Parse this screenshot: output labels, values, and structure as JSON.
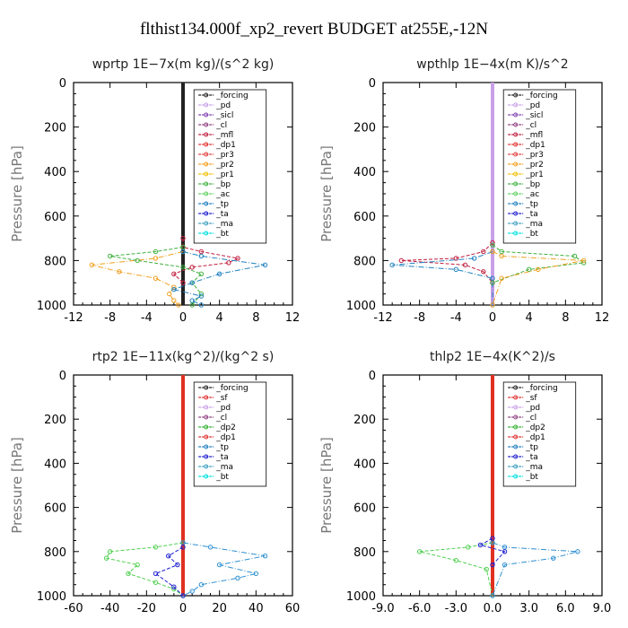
{
  "figure": {
    "title": "flthist134.000f_xp2_revert  BUDGET at255E,-12N"
  },
  "colors": {
    "forcing": "#222222",
    "pd": "#c8a0e8",
    "sicl": "#8040b0",
    "cl": "#904080",
    "mfl": "#c02040",
    "dp1": "#e03030",
    "pr3": "#e04040",
    "pr2": "#f0a020",
    "pr1": "#f0c000",
    "bp": "#40b040",
    "ac": "#60d060",
    "tp": "#2080c0",
    "ta": "#2020d0",
    "ma": "#40a0c0",
    "bt": "#00e0e0",
    "sf": "#e03030",
    "dp2": "#30b030",
    "red": "#e03020",
    "green": "#50d050",
    "cyan": "#3090d0"
  },
  "chart_data": [
    {
      "type": "line",
      "title": "wprtp   1E−7x(m kg)/(s^2 kg)",
      "ylabel": "Pressure [hPa]",
      "xlim": [
        -12,
        12
      ],
      "ylim": [
        1000,
        0
      ],
      "xticks": [
        "-12",
        "-8",
        "-4",
        "0",
        "4",
        "8",
        "12"
      ],
      "yticks": [
        "0",
        "200",
        "400",
        "600",
        "800",
        "1000"
      ],
      "legend": [
        "_forcing",
        "_pd",
        "_sicl",
        "_cl",
        "_mfl",
        "_dp1",
        "_pr3",
        "_pr2",
        "_pr1",
        "_bp",
        "_ac",
        "_tp",
        "_ta",
        "_ma",
        "_bt"
      ],
      "series": [
        {
          "name": "_forcing",
          "color": "forcing",
          "x": [
            0,
            0
          ],
          "y": [
            0,
            1000
          ]
        },
        {
          "name": "_mfl",
          "color": "mfl",
          "x": [
            0,
            0,
            2,
            6,
            5,
            1,
            -1,
            0
          ],
          "y": [
            700,
            740,
            760,
            790,
            810,
            830,
            860,
            900
          ]
        },
        {
          "name": "_pr2",
          "color": "pr2",
          "x": [
            0,
            -3,
            -10,
            -7,
            -3,
            -1,
            -1.5,
            -1,
            -0.5
          ],
          "y": [
            760,
            790,
            820,
            850,
            880,
            920,
            950,
            980,
            1000
          ]
        },
        {
          "name": "_bp",
          "color": "bp",
          "x": [
            0,
            -3,
            -8,
            -5,
            0,
            2,
            1,
            2,
            1
          ],
          "y": [
            740,
            760,
            780,
            800,
            830,
            860,
            900,
            950,
            1000
          ]
        },
        {
          "name": "_tp",
          "color": "tp",
          "x": [
            0,
            2,
            9,
            4,
            1,
            -1,
            2,
            1,
            2
          ],
          "y": [
            760,
            780,
            820,
            860,
            900,
            930,
            960,
            980,
            1000
          ]
        }
      ]
    },
    {
      "type": "line",
      "title": "wpthlp   1E−4x(m K)/s^2",
      "ylabel": "Pressure [hPa]",
      "xlim": [
        -12,
        12
      ],
      "ylim": [
        1000,
        0
      ],
      "xticks": [
        "-12",
        "-8",
        "-4",
        "0",
        "4",
        "8",
        "12"
      ],
      "yticks": [
        "0",
        "200",
        "400",
        "600",
        "800",
        "1000"
      ],
      "legend": [
        "_forcing",
        "_pd",
        "_sicl",
        "_cl",
        "_mfl",
        "_dp1",
        "_pr3",
        "_pr2",
        "_pr1",
        "_bp",
        "_ac",
        "_tp",
        "_ta",
        "_ma",
        "_bt"
      ],
      "series": [
        {
          "name": "_pd",
          "color": "pd",
          "x": [
            0,
            0
          ],
          "y": [
            0,
            1000
          ]
        },
        {
          "name": "_mfl",
          "color": "mfl",
          "x": [
            0,
            -1,
            -4,
            -10,
            -3,
            -1,
            0
          ],
          "y": [
            720,
            760,
            790,
            800,
            820,
            850,
            900
          ]
        },
        {
          "name": "_tp",
          "color": "tp",
          "x": [
            0,
            -2,
            -11,
            -4,
            0,
            0
          ],
          "y": [
            760,
            790,
            820,
            840,
            880,
            1000
          ]
        },
        {
          "name": "_bp",
          "color": "bp",
          "x": [
            0,
            1,
            9,
            10,
            4,
            0
          ],
          "y": [
            730,
            760,
            780,
            810,
            840,
            900
          ]
        },
        {
          "name": "_pr2",
          "color": "pr2",
          "x": [
            0,
            1,
            10,
            5,
            1,
            0
          ],
          "y": [
            760,
            780,
            800,
            840,
            880,
            1000
          ]
        }
      ]
    },
    {
      "type": "line",
      "title": "rtp2   1E−11x(kg^2)/(kg^2 s)",
      "ylabel": "Pressure [hPa]",
      "xlim": [
        -60,
        60
      ],
      "ylim": [
        1000,
        0
      ],
      "xticks": [
        "-60",
        "-40",
        "-20",
        "0",
        "20",
        "40",
        "60"
      ],
      "yticks": [
        "0",
        "200",
        "400",
        "600",
        "800",
        "1000"
      ],
      "legend": [
        "_forcing",
        "_sf",
        "_pd",
        "_cl",
        "_dp2",
        "_dp1",
        "_tp",
        "_ta",
        "_ma",
        "_bt"
      ],
      "series": [
        {
          "name": "_forcing",
          "color": "red",
          "x": [
            0,
            0
          ],
          "y": [
            0,
            1000
          ]
        },
        {
          "name": "_dp1",
          "color": "green",
          "x": [
            0,
            -15,
            -40,
            -42,
            -25,
            -30,
            -15,
            -5,
            0
          ],
          "y": [
            760,
            780,
            800,
            830,
            860,
            900,
            940,
            970,
            1000
          ]
        },
        {
          "name": "_tp",
          "color": "cyan",
          "x": [
            0,
            15,
            45,
            20,
            40,
            30,
            10,
            5,
            0
          ],
          "y": [
            760,
            780,
            820,
            860,
            900,
            920,
            950,
            980,
            1000
          ]
        },
        {
          "name": "_ta",
          "color": "ta",
          "x": [
            0,
            -8,
            -3,
            -15,
            -5,
            0
          ],
          "y": [
            780,
            820,
            860,
            900,
            960,
            1000
          ]
        }
      ]
    },
    {
      "type": "line",
      "title": "thlp2   1E−4x(K^2)/s",
      "ylabel": "Pressure [hPa]",
      "xlim": [
        -9,
        9
      ],
      "ylim": [
        1000,
        0
      ],
      "xticks": [
        "-9.0",
        "-6.0",
        "-3.0",
        "0.0",
        "3.0",
        "6.0",
        "9.0"
      ],
      "yticks": [
        "0",
        "200",
        "400",
        "600",
        "800",
        "1000"
      ],
      "legend": [
        "_forcing",
        "_sf",
        "_pd",
        "_cl",
        "_dp2",
        "_dp1",
        "_tp",
        "_ta",
        "_ma",
        "_bt"
      ],
      "series": [
        {
          "name": "_forcing",
          "color": "red",
          "x": [
            0,
            0
          ],
          "y": [
            0,
            1000
          ]
        },
        {
          "name": "_dp1",
          "color": "green",
          "x": [
            0,
            -2,
            -6,
            -3,
            -0.5,
            0
          ],
          "y": [
            760,
            780,
            800,
            840,
            880,
            1000
          ]
        },
        {
          "name": "_tp",
          "color": "cyan",
          "x": [
            0,
            1,
            7,
            5,
            1,
            0
          ],
          "y": [
            760,
            780,
            800,
            830,
            860,
            1000
          ]
        },
        {
          "name": "_ta",
          "color": "ta",
          "x": [
            0,
            -1,
            1,
            0
          ],
          "y": [
            740,
            770,
            800,
            860
          ]
        }
      ]
    }
  ]
}
